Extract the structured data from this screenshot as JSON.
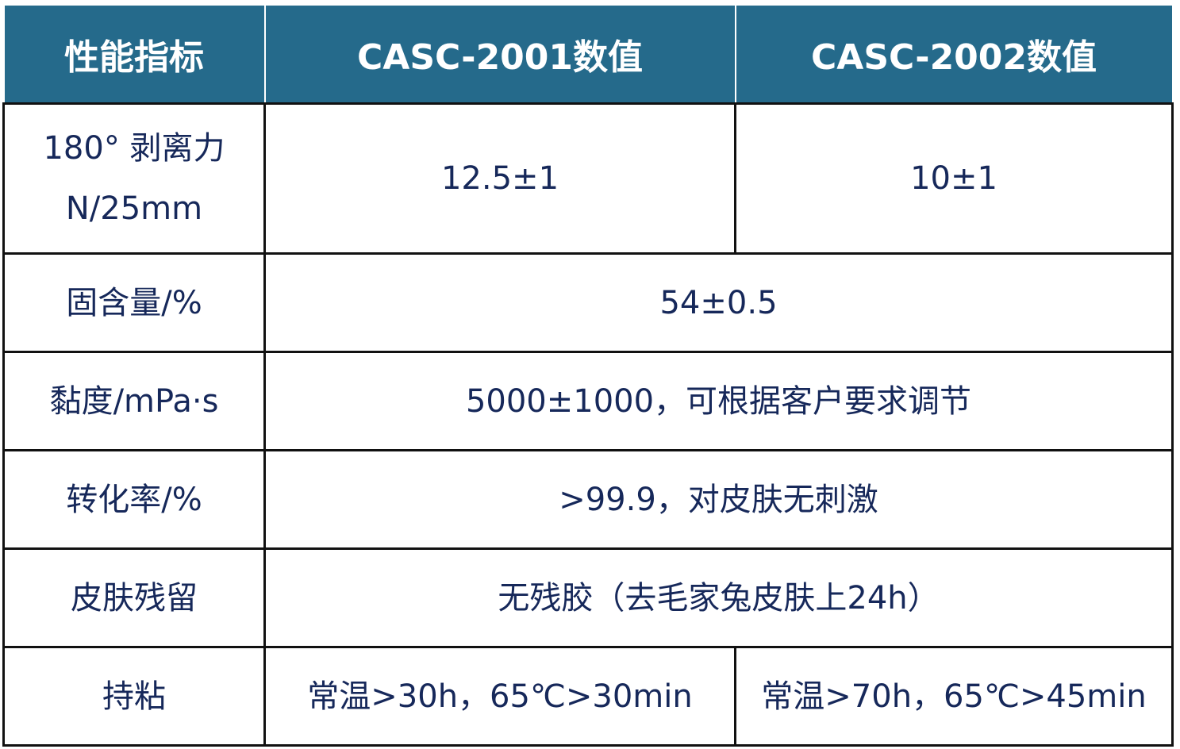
{
  "table": {
    "header": [
      "性能指标",
      "CASC-2001数值",
      "CASC-2002数值"
    ],
    "rows": [
      [
        "180° 剥离力\nN/25mm",
        "12.5±1",
        "10±1"
      ],
      [
        "固含量/%",
        "54±0.5"
      ],
      [
        "黏度/mPa·s",
        "5000±1000，可根据客户要求调节"
      ],
      [
        "转化率/%",
        ">99.9，对皮肤无刺激"
      ],
      [
        "皮肤残留",
        "无残胶（去毛家兔皮肤上24h）"
      ],
      [
        "持粘",
        "常温>30h，65℃>30min",
        "常温>70h，65℃>45min"
      ]
    ]
  }
}
